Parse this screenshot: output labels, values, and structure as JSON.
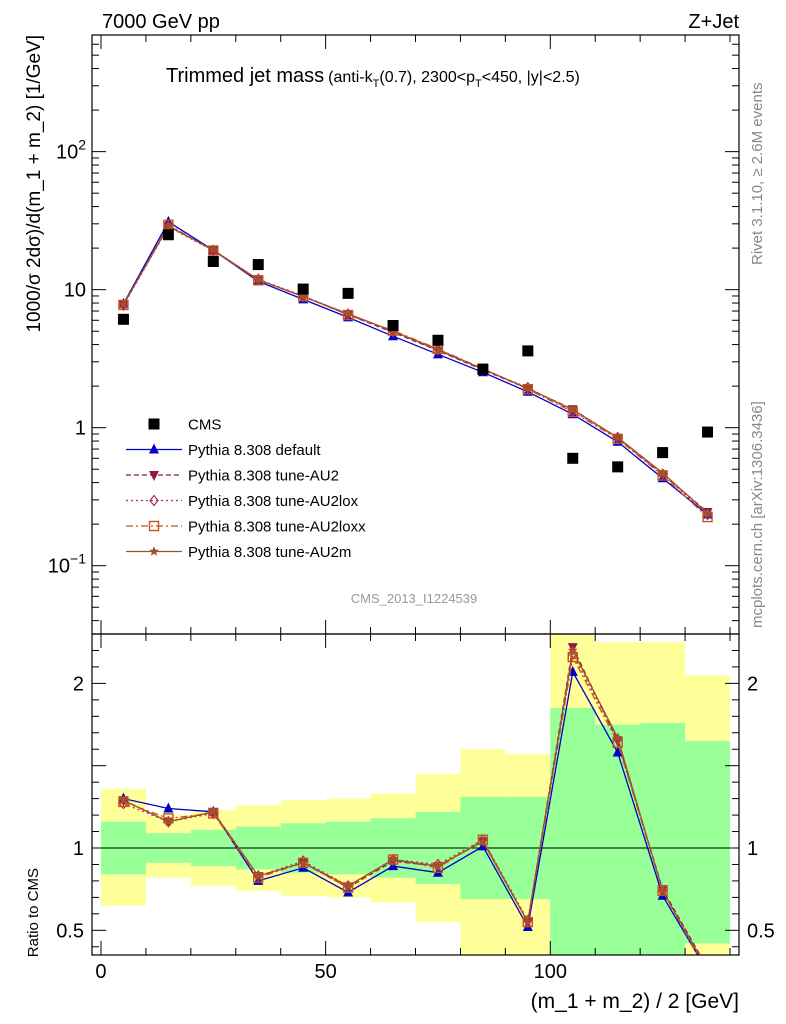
{
  "header": {
    "energy_label": "7000 GeV pp",
    "process_label": "Z+Jet"
  },
  "plot_title": {
    "main": "Trimmed jet mass",
    "detail_pre": "(anti-k",
    "detail_sub1": "T",
    "detail_mid": "(0.7), 2300<p",
    "detail_sub2": "T",
    "detail_post": "<450, |y|<2.5)"
  },
  "side_labels": {
    "rivet": "Rivet 3.1.10, ≥ 2.6M events",
    "mcplots": "mcplots.cern.ch [arXiv:1306.3436]"
  },
  "analysis_id": "CMS_2013_I1224539",
  "colors": {
    "default": "#0000cc",
    "au2": "#8b1a4a",
    "au2lox": "#b0304f",
    "au2loxx": "#c8501e",
    "au2m": "#a0522d",
    "band_inner": "#99ff99",
    "band_outer": "#ffff99"
  },
  "chart_data": [
    {
      "type": "scatter",
      "panel": "main",
      "ylabel": "1000/σ 2dσ)/d(m_1 + m_2) [1/GeV]",
      "log_y": true,
      "xlim": [
        -2,
        142
      ],
      "ylim": [
        0.032,
        700
      ],
      "y_ticks": [
        {
          "value": 0.1,
          "base": "10",
          "exp": "−1"
        },
        {
          "value": 1,
          "base": "1",
          "exp": ""
        },
        {
          "value": 10,
          "base": "10",
          "exp": ""
        },
        {
          "value": 100,
          "base": "10",
          "exp": "2"
        }
      ],
      "x": [
        5,
        15,
        25,
        35,
        45,
        55,
        65,
        75,
        85,
        95,
        105,
        115,
        125,
        135
      ],
      "series": [
        {
          "name": "CMS",
          "key": "cms",
          "marker": "square",
          "line": "none",
          "values": [
            6.1,
            25.0,
            16.0,
            15.2,
            10.1,
            9.4,
            5.5,
            4.3,
            2.65,
            3.6,
            0.6,
            0.52,
            0.66,
            0.93
          ]
        },
        {
          "name": "Pythia 8.308 default",
          "key": "default",
          "marker": "triangle-up",
          "line": "solid",
          "values": [
            7.9,
            31.0,
            19.3,
            11.5,
            8.5,
            6.3,
            4.6,
            3.4,
            2.52,
            1.82,
            1.25,
            0.79,
            0.43,
            0.235
          ]
        },
        {
          "name": "Pythia 8.308 tune-AU2",
          "key": "au2",
          "marker": "triangle-down",
          "line": "dashed",
          "values": [
            7.85,
            29.0,
            19.3,
            11.8,
            8.9,
            6.6,
            4.9,
            3.62,
            2.62,
            1.92,
            1.36,
            0.84,
            0.46,
            0.245
          ]
        },
        {
          "name": "Pythia 8.308 tune-AU2lox",
          "key": "au2lox",
          "marker": "diamond-open",
          "line": "dotted",
          "values": [
            7.7,
            28.5,
            19.2,
            11.9,
            9.0,
            6.65,
            5.0,
            3.7,
            2.65,
            1.95,
            1.32,
            0.85,
            0.46,
            0.235
          ]
        },
        {
          "name": "Pythia 8.308 tune-AU2loxx",
          "key": "au2loxx",
          "marker": "square-open",
          "line": "dashdot",
          "values": [
            7.75,
            29.5,
            19.2,
            11.7,
            8.95,
            6.55,
            5.05,
            3.72,
            2.68,
            1.9,
            1.3,
            0.83,
            0.45,
            0.225
          ]
        },
        {
          "name": "Pythia 8.308 tune-AU2m",
          "key": "au2m",
          "marker": "star",
          "line": "solid",
          "values": [
            7.8,
            28.8,
            19.4,
            11.8,
            8.9,
            6.7,
            5.0,
            3.65,
            2.66,
            1.93,
            1.35,
            0.85,
            0.47,
            0.24
          ]
        }
      ]
    },
    {
      "type": "line",
      "panel": "ratio",
      "xlabel": "(m_1 + m_2) / 2 [GeV]",
      "ylabel": "Ratio to CMS",
      "xlim": [
        -2,
        142
      ],
      "ylim": [
        0.35,
        2.3
      ],
      "x_ticks": [
        0,
        50,
        100
      ],
      "y_ticks": [
        0.5,
        1,
        2
      ],
      "reference_line": 1,
      "bins": [
        [
          0,
          10
        ],
        [
          10,
          20
        ],
        [
          20,
          30
        ],
        [
          30,
          40
        ],
        [
          40,
          50
        ],
        [
          50,
          60
        ],
        [
          60,
          70
        ],
        [
          70,
          80
        ],
        [
          80,
          90
        ],
        [
          90,
          100
        ],
        [
          100,
          110
        ],
        [
          110,
          120
        ],
        [
          120,
          130
        ],
        [
          130,
          140
        ]
      ],
      "band_inner": [
        [
          0.84,
          1.16
        ],
        [
          0.91,
          1.09
        ],
        [
          0.89,
          1.11
        ],
        [
          0.87,
          1.13
        ],
        [
          0.85,
          1.15
        ],
        [
          0.84,
          1.16
        ],
        [
          0.82,
          1.18
        ],
        [
          0.78,
          1.22
        ],
        [
          0.69,
          1.31
        ],
        [
          0.69,
          1.31
        ],
        [
          0.0,
          1.85
        ],
        [
          0.0,
          1.75
        ],
        [
          0.0,
          1.76
        ],
        [
          0.42,
          1.65
        ]
      ],
      "band_outer": [
        [
          0.65,
          1.36
        ],
        [
          0.82,
          1.2
        ],
        [
          0.77,
          1.23
        ],
        [
          0.74,
          1.26
        ],
        [
          0.71,
          1.29
        ],
        [
          0.7,
          1.3
        ],
        [
          0.67,
          1.33
        ],
        [
          0.55,
          1.45
        ],
        [
          0.35,
          1.6
        ],
        [
          0.35,
          1.57
        ],
        [
          0.0,
          2.3
        ],
        [
          0.0,
          2.25
        ],
        [
          0.0,
          2.25
        ],
        [
          0.0,
          2.05
        ]
      ],
      "x": [
        5,
        15,
        25,
        35,
        45,
        55,
        65,
        75,
        85,
        95,
        105,
        115,
        125,
        135
      ],
      "series": [
        {
          "name": "Pythia 8.308 default",
          "key": "default",
          "marker": "triangle-up",
          "line": "solid",
          "values": [
            1.3,
            1.24,
            1.22,
            0.8,
            0.88,
            0.73,
            0.89,
            0.85,
            1.01,
            0.52,
            2.07,
            1.58,
            0.71,
            0.25
          ]
        },
        {
          "name": "Pythia 8.308 tune-AU2",
          "key": "au2",
          "marker": "triangle-down",
          "line": "dashed",
          "values": [
            1.29,
            1.16,
            1.22,
            0.83,
            0.91,
            0.76,
            0.92,
            0.89,
            1.04,
            0.55,
            2.22,
            1.65,
            0.75,
            0.27
          ]
        },
        {
          "name": "Pythia 8.308 tune-AU2lox",
          "key": "au2lox",
          "marker": "diamond-open",
          "line": "dotted",
          "values": [
            1.27,
            1.16,
            1.21,
            0.83,
            0.92,
            0.77,
            0.93,
            0.9,
            1.05,
            0.56,
            2.18,
            1.66,
            0.74,
            0.25
          ]
        },
        {
          "name": "Pythia 8.308 tune-AU2loxx",
          "key": "au2loxx",
          "marker": "square-open",
          "line": "dashdot",
          "values": [
            1.28,
            1.18,
            1.21,
            0.82,
            0.91,
            0.76,
            0.93,
            0.88,
            1.05,
            0.55,
            2.16,
            1.64,
            0.74,
            0.24
          ]
        },
        {
          "name": "Pythia 8.308 tune-AU2m",
          "key": "au2m",
          "marker": "star",
          "line": "solid",
          "values": [
            1.29,
            1.16,
            1.22,
            0.83,
            0.91,
            0.77,
            0.93,
            0.89,
            1.04,
            0.55,
            2.2,
            1.67,
            0.74,
            0.26
          ]
        }
      ]
    }
  ]
}
